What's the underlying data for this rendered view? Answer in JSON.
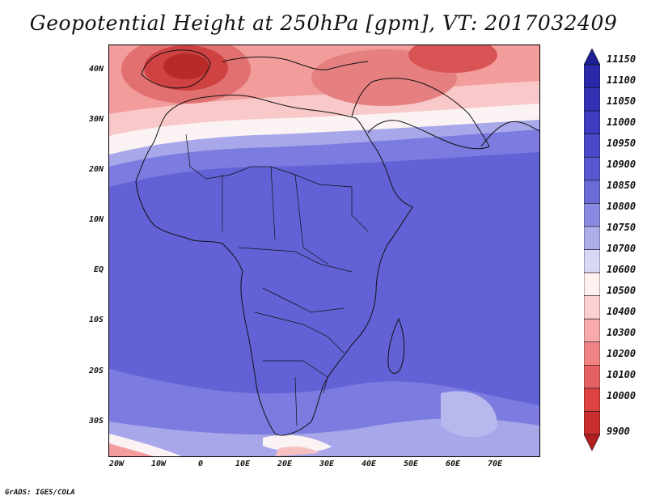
{
  "title": "Geopotential Height at 250hPa [gpm], VT: 2017032409",
  "footer": "GrADS: IGES/COLA",
  "lat_labels": [
    "40N",
    "30N",
    "20N",
    "10N",
    "EQ",
    "10S",
    "20S",
    "30S"
  ],
  "lon_labels": [
    "20W",
    "10W",
    "0",
    "10E",
    "20E",
    "30E",
    "40E",
    "50E",
    "60E",
    "70E"
  ],
  "colorbar": {
    "labels": [
      "11150",
      "11100",
      "11050",
      "11000",
      "10950",
      "10900",
      "10850",
      "10800",
      "10750",
      "10700",
      "10600",
      "10500",
      "10400",
      "10300",
      "10200",
      "10100",
      "10000",
      "9900"
    ],
    "colors": [
      "#1f1f95",
      "#2828a8",
      "#3232b5",
      "#3c3cc0",
      "#4848c8",
      "#5858d0",
      "#6c6cd8",
      "#8a8ae0",
      "#adadea",
      "#d8d8f6",
      "#fff0f0",
      "#fcd0d0",
      "#f7aaaa",
      "#f08484",
      "#e66060",
      "#dc4242",
      "#c82e2e",
      "#b01e1e"
    ]
  },
  "colors": {
    "tropics": "#6262d6",
    "subtropic_blue": "#7b7be0",
    "light_blue": "#a7a7ea",
    "white_band": "#fbf3f3",
    "pink": "#f9c8c8",
    "salmon": "#f29c9c",
    "red": "#e27070",
    "deep_red": "#cf4242",
    "darkest_red": "#b62a2a"
  }
}
